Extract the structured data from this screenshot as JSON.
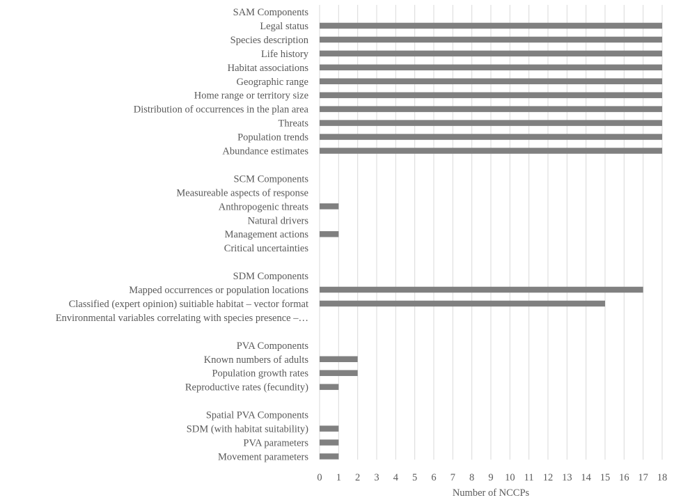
{
  "chart_data": {
    "type": "bar",
    "orientation": "horizontal",
    "title": "",
    "xlabel": "Number of NCCPs",
    "ylabel": "",
    "xlim": [
      0,
      18
    ],
    "x_ticks": [
      "0",
      "1",
      "2",
      "3",
      "4",
      "5",
      "6",
      "7",
      "8",
      "9",
      "10",
      "11",
      "12",
      "13",
      "14",
      "15",
      "16",
      "17",
      "18"
    ],
    "grid": "vertical",
    "bar_color": "#808080",
    "categories": [
      "SAM Components",
      "Legal status",
      "Species description",
      "Life history",
      "Habitat associations",
      "Geographic range",
      "Home range or territory size",
      "Distribution of occurrences in the plan area",
      "Threats",
      "Population trends",
      "Abundance estimates",
      "",
      "SCM Components",
      "Measureable aspects of response",
      "Anthropogenic threats",
      "Natural drivers",
      "Management actions",
      "Critical uncertainties",
      "",
      "SDM Components",
      "Mapped occurrences or population locations",
      "Classified (expert opinion) suitiable habitat – vector format",
      "Environmental variables correlating with species presence –…",
      "",
      "PVA Components",
      "Known numbers of adults",
      "Population growth rates",
      "Reproductive rates (fecundity)",
      "",
      "Spatial PVA Components",
      "SDM (with habitat suitability)",
      "PVA parameters",
      "Movement parameters"
    ],
    "values": [
      null,
      18,
      18,
      18,
      18,
      18,
      18,
      18,
      18,
      18,
      18,
      null,
      null,
      0,
      1,
      0,
      1,
      0,
      null,
      null,
      17,
      15,
      0,
      null,
      null,
      2,
      2,
      1,
      null,
      null,
      1,
      1,
      1
    ]
  }
}
